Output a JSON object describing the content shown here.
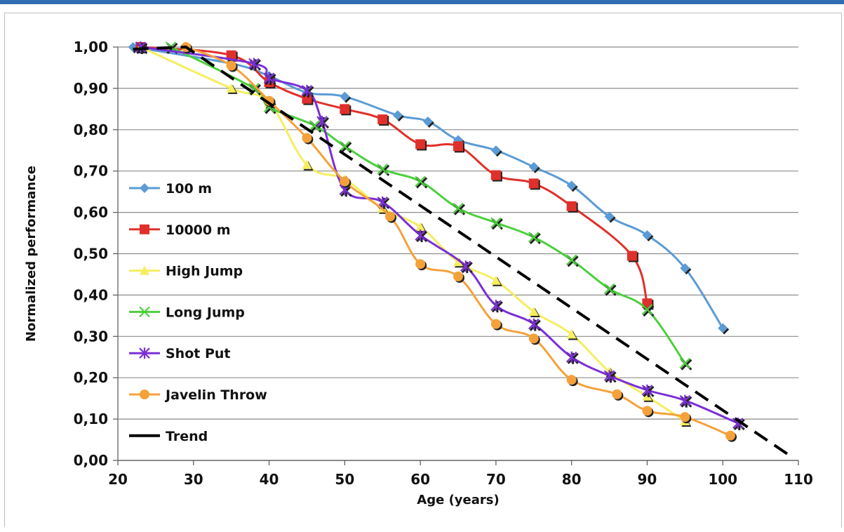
{
  "chart_data": {
    "type": "line",
    "title": "",
    "xlabel": "Age (years)",
    "ylabel": "Normalized performance",
    "xlim": [
      20,
      110
    ],
    "ylim": [
      0,
      1
    ],
    "xticks": [
      20,
      30,
      40,
      50,
      60,
      70,
      80,
      90,
      100,
      110
    ],
    "xtick_labels": [
      "20",
      "30",
      "40",
      "50",
      "60",
      "70",
      "80",
      "90",
      "100",
      "110"
    ],
    "yticks": [
      0,
      0.1,
      0.2,
      0.3,
      0.4,
      0.5,
      0.6,
      0.7,
      0.8,
      0.9,
      1.0
    ],
    "ytick_labels": [
      "0,00",
      "0,10",
      "0,20",
      "0,30",
      "0,40",
      "0,50",
      "0,60",
      "0,70",
      "0,80",
      "0,90",
      "1,00"
    ],
    "grid": "horizontal",
    "legend_position": "left",
    "series": [
      {
        "name": "100 m",
        "color": "#5b9bd5",
        "marker": "diamond",
        "points": [
          [
            22,
            1.0
          ],
          [
            35,
            0.96
          ],
          [
            40,
            0.93
          ],
          [
            45,
            0.89
          ],
          [
            50,
            0.88
          ],
          [
            57,
            0.835
          ],
          [
            61,
            0.82
          ],
          [
            65,
            0.775
          ],
          [
            70,
            0.75
          ],
          [
            75,
            0.71
          ],
          [
            80,
            0.665
          ],
          [
            85,
            0.59
          ],
          [
            90,
            0.545
          ],
          [
            95,
            0.465
          ],
          [
            100,
            0.32
          ]
        ]
      },
      {
        "name": "10000 m",
        "color": "#e0302b",
        "marker": "square",
        "points": [
          [
            23,
            1.0
          ],
          [
            35,
            0.98
          ],
          [
            40,
            0.915
          ],
          [
            45,
            0.875
          ],
          [
            50,
            0.85
          ],
          [
            55,
            0.825
          ],
          [
            60,
            0.765
          ],
          [
            65,
            0.76
          ],
          [
            70,
            0.69
          ],
          [
            75,
            0.67
          ],
          [
            80,
            0.615
          ],
          [
            88,
            0.495
          ],
          [
            90,
            0.38
          ]
        ]
      },
      {
        "name": "High Jump",
        "color": "#f5ee5f",
        "marker": "triangle",
        "points": [
          [
            23,
            1.0
          ],
          [
            35,
            0.9
          ],
          [
            40,
            0.865
          ],
          [
            45,
            0.715
          ],
          [
            50,
            0.68
          ],
          [
            55,
            0.61
          ],
          [
            60,
            0.565
          ],
          [
            65,
            0.48
          ],
          [
            70,
            0.435
          ],
          [
            75,
            0.36
          ],
          [
            80,
            0.305
          ],
          [
            85,
            0.215
          ],
          [
            90,
            0.155
          ],
          [
            95,
            0.095
          ]
        ]
      },
      {
        "name": "Long Jump",
        "color": "#4ccf3d",
        "marker": "x",
        "points": [
          [
            27,
            1.0
          ],
          [
            38,
            0.9
          ],
          [
            40,
            0.855
          ],
          [
            46,
            0.81
          ],
          [
            50,
            0.76
          ],
          [
            55,
            0.705
          ],
          [
            60,
            0.675
          ],
          [
            65,
            0.61
          ],
          [
            70,
            0.575
          ],
          [
            75,
            0.54
          ],
          [
            80,
            0.485
          ],
          [
            85,
            0.415
          ],
          [
            90,
            0.365
          ],
          [
            95,
            0.235
          ]
        ]
      },
      {
        "name": "Shot Put",
        "color": "#7b2fd6",
        "marker": "star",
        "points": [
          [
            23,
            1.0
          ],
          [
            38,
            0.96
          ],
          [
            40,
            0.925
          ],
          [
            45,
            0.895
          ],
          [
            47,
            0.82
          ],
          [
            50,
            0.655
          ],
          [
            55,
            0.625
          ],
          [
            60,
            0.545
          ],
          [
            66,
            0.47
          ],
          [
            70,
            0.375
          ],
          [
            75,
            0.33
          ],
          [
            80,
            0.25
          ],
          [
            85,
            0.205
          ],
          [
            90,
            0.17
          ],
          [
            95,
            0.145
          ],
          [
            102,
            0.09
          ]
        ]
      },
      {
        "name": "Javelin Throw",
        "color": "#f5a13a",
        "marker": "circle",
        "points": [
          [
            29,
            1.0
          ],
          [
            35,
            0.955
          ],
          [
            40,
            0.87
          ],
          [
            45,
            0.78
          ],
          [
            50,
            0.675
          ],
          [
            56,
            0.59
          ],
          [
            60,
            0.475
          ],
          [
            65,
            0.445
          ],
          [
            70,
            0.33
          ],
          [
            75,
            0.295
          ],
          [
            80,
            0.195
          ],
          [
            86,
            0.16
          ],
          [
            90,
            0.12
          ],
          [
            95,
            0.105
          ],
          [
            101,
            0.06
          ]
        ]
      },
      {
        "name": "Trend",
        "color": "#000000",
        "marker": "none",
        "dashed": true,
        "points": [
          [
            22,
            0.995
          ],
          [
            29,
            1.0
          ],
          [
            109,
            0.01
          ]
        ]
      }
    ]
  }
}
